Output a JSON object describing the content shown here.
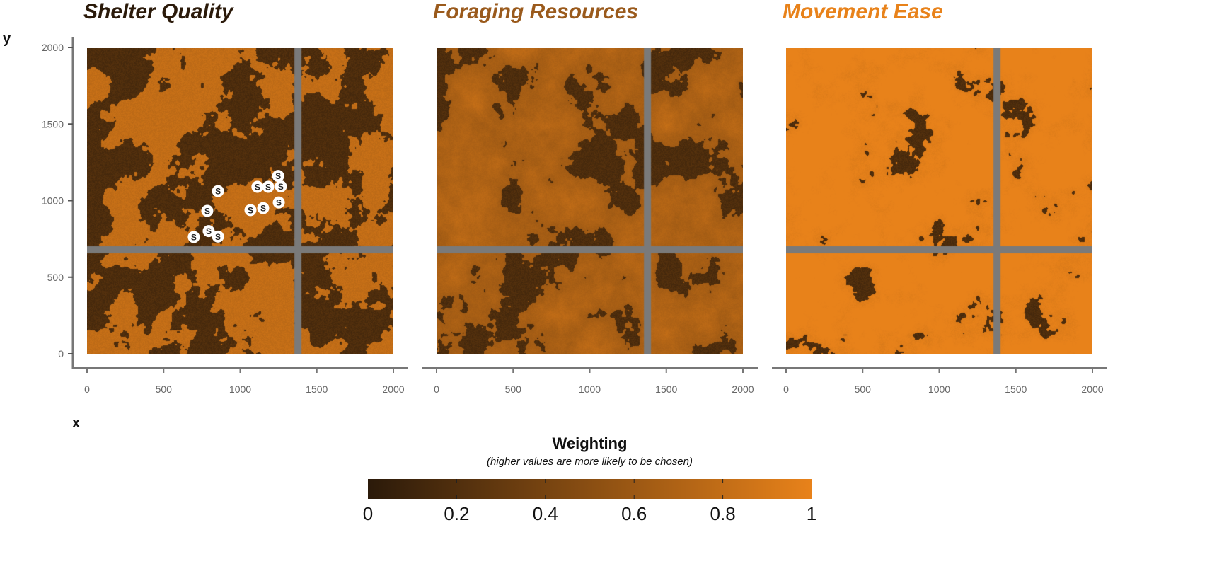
{
  "chart_data": {
    "type": "heatmap",
    "panels": [
      {
        "title": "Shelter Quality",
        "title_color": "#2b1a0a",
        "dark_fraction": 0.5,
        "base_weight": 0.75,
        "points_label": "S",
        "points": [
          [
            855,
            1062
          ],
          [
            785,
            933
          ],
          [
            697,
            762
          ],
          [
            804,
            795
          ],
          [
            845,
            771
          ],
          [
            1067,
            938
          ],
          [
            1150,
            951
          ],
          [
            1122,
            1090
          ],
          [
            1173,
            1090
          ],
          [
            1252,
            1145
          ],
          [
            1261,
            1109
          ],
          [
            1252,
            988
          ]
        ]
      },
      {
        "title": "Foraging Resources",
        "title_color": "#9a5a1c",
        "dark_fraction": 0.25,
        "base_weight": 0.6
      },
      {
        "title": "Movement Ease",
        "title_color": "#e8821a",
        "dark_fraction": 0.06,
        "base_weight": 0.92
      }
    ],
    "xlabel": "x",
    "ylabel": "y",
    "xlim": [
      0,
      2000
    ],
    "ylim": [
      0,
      2000
    ],
    "xticks": [
      "0",
      "500",
      "1000",
      "1500",
      "2000"
    ],
    "yticks": [
      "0",
      "500",
      "1000",
      "1500",
      "2000"
    ],
    "roads": {
      "x": 1377,
      "y": 680,
      "color": "#7a7a7a"
    },
    "colorbar": {
      "title": "Weighting",
      "subtitle": "(higher values are more likely to be chosen)",
      "range": [
        0,
        1
      ],
      "ticks": [
        "0",
        "0.2",
        "0.4",
        "0.6",
        "0.8",
        "1"
      ],
      "low_color": "#2b1a0a",
      "high_color": "#e8821a"
    }
  }
}
